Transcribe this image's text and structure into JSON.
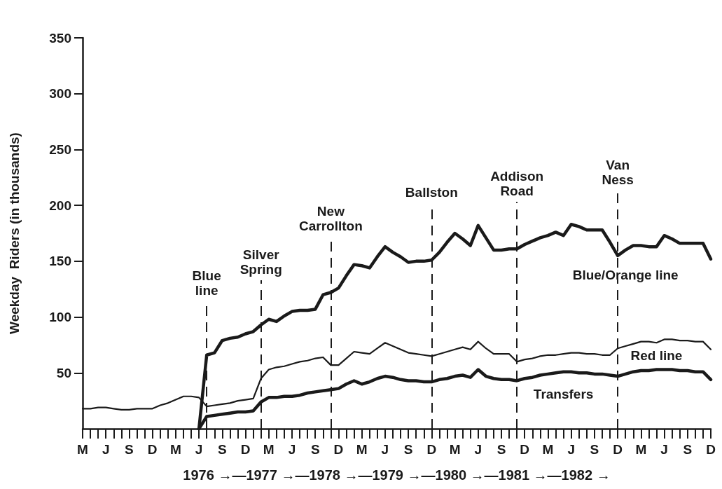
{
  "chart_data": {
    "type": "line",
    "xlabel": "1976 →—1977 →—1978 →—1979 →—1980 →—1981 →—1982 →",
    "ylabel": "Weekday  Riders (in thousands)",
    "ylim": [
      0,
      350
    ],
    "yticks": [
      50,
      100,
      150,
      200,
      250,
      300,
      350
    ],
    "categories": [
      "M",
      null,
      null,
      "J",
      null,
      null,
      "S",
      null,
      null,
      "D",
      null,
      null,
      "M",
      null,
      null,
      "J",
      null,
      null,
      "S",
      null,
      null,
      "D",
      null,
      null,
      "M",
      null,
      null,
      "J",
      null,
      null,
      "S",
      null,
      null,
      "D",
      null,
      null,
      "M",
      null,
      null,
      "J",
      null,
      null,
      "S",
      null,
      null,
      "D",
      null,
      null,
      "M",
      null,
      null,
      "J",
      null,
      null,
      "S",
      null,
      null,
      "D",
      null,
      null,
      "M",
      null,
      null,
      "J",
      null,
      null,
      "S",
      null,
      null,
      "D",
      null,
      null,
      "M",
      null,
      null,
      "J",
      null,
      null,
      "S",
      null,
      null,
      "D"
    ],
    "series": [
      {
        "name": "Blue/Orange line",
        "color": "#1a1a1a",
        "values": [
          null,
          null,
          null,
          null,
          null,
          null,
          null,
          null,
          null,
          null,
          null,
          null,
          null,
          null,
          null,
          0,
          66,
          68,
          79,
          81,
          82,
          85,
          87,
          93,
          98,
          96,
          101,
          105,
          106,
          106,
          107,
          120,
          122,
          126,
          137,
          147,
          146,
          144,
          154,
          163,
          158,
          154,
          149,
          150,
          150,
          151,
          158,
          167,
          175,
          170,
          164,
          182,
          171,
          160,
          160,
          161,
          161,
          165,
          168,
          171,
          173,
          176,
          173,
          183,
          181,
          178,
          178,
          178,
          167,
          155,
          160,
          164,
          164,
          163,
          163,
          173,
          170,
          166,
          166,
          166,
          166,
          152
        ]
      },
      {
        "name": "Red line",
        "color": "#1a1a1a",
        "values": [
          18,
          18,
          19,
          19,
          18,
          17,
          17,
          18,
          18,
          18,
          21,
          23,
          26,
          29,
          29,
          28,
          20,
          21,
          22,
          23,
          25,
          26,
          27,
          45,
          53,
          55,
          56,
          58,
          60,
          61,
          63,
          64,
          57,
          57,
          63,
          69,
          68,
          67,
          72,
          77,
          74,
          71,
          68,
          67,
          66,
          65,
          67,
          69,
          71,
          73,
          71,
          78,
          72,
          67,
          67,
          67,
          60,
          62,
          63,
          65,
          66,
          66,
          67,
          68,
          68,
          67,
          67,
          66,
          66,
          72,
          74,
          76,
          78,
          78,
          77,
          80,
          80,
          79,
          79,
          78,
          78,
          71
        ]
      },
      {
        "name": "Transfers",
        "color": "#1a1a1a",
        "values": [
          null,
          null,
          null,
          null,
          null,
          null,
          null,
          null,
          null,
          null,
          null,
          null,
          null,
          null,
          null,
          0,
          11,
          12,
          13,
          14,
          15,
          15,
          16,
          24,
          28,
          28,
          29,
          29,
          30,
          32,
          33,
          34,
          35,
          36,
          40,
          43,
          40,
          42,
          45,
          47,
          46,
          44,
          43,
          43,
          42,
          42,
          44,
          45,
          47,
          48,
          46,
          53,
          47,
          45,
          44,
          44,
          43,
          45,
          46,
          48,
          49,
          50,
          51,
          51,
          50,
          50,
          49,
          49,
          48,
          47,
          49,
          51,
          52,
          52,
          53,
          53,
          53,
          52,
          52,
          51,
          51,
          44
        ]
      }
    ],
    "annotations": [
      "Blue line",
      "Silver Spring",
      "New Carrollton",
      "Ballston",
      "Addison Road",
      "Van Ness"
    ],
    "grid": false,
    "legend": false,
    "marker": "none",
    "line_style": "solid"
  }
}
